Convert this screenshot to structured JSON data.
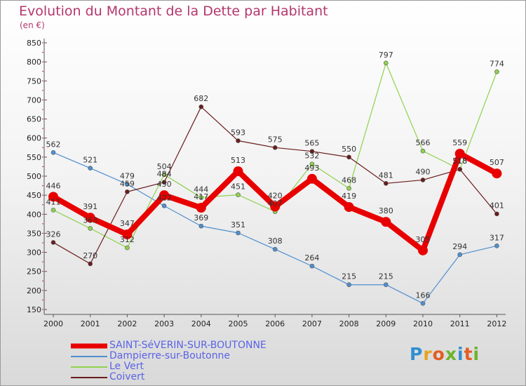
{
  "header": {
    "title": "Evolution du Montant de la Dette par Habitant",
    "unit": "(en €)"
  },
  "logo": {
    "letters": [
      {
        "ch": "P",
        "color": "#2f8fd1"
      },
      {
        "ch": "r",
        "color": "#e6a31f"
      },
      {
        "ch": "o",
        "color": "#e35d22"
      },
      {
        "ch": "x",
        "color": "#6bb42b"
      },
      {
        "ch": "i",
        "color": "#2f8fd1"
      },
      {
        "ch": "t",
        "color": "#e35d22"
      },
      {
        "ch": "i",
        "color": "#6bb42b"
      }
    ]
  },
  "chart_data": {
    "type": "line",
    "title": "Evolution du Montant de la Dette par Habitant",
    "ylabel": "(en €)",
    "xlabel": "",
    "ylim": [
      150,
      850
    ],
    "yticks": [
      150,
      200,
      250,
      300,
      350,
      400,
      450,
      500,
      550,
      600,
      650,
      700,
      750,
      800,
      850
    ],
    "grid": false,
    "legend_position": "bottom-left",
    "x": [
      "2000",
      "2001",
      "2002",
      "2003",
      "2004",
      "2005",
      "2006",
      "2007",
      "2008",
      "2009",
      "2010",
      "2011",
      "2012"
    ],
    "series": [
      {
        "name": "SAINT-SéVERIN-SUR-BOUTONNE",
        "color": "#e80000",
        "values": [
          446,
          391,
          347,
          450,
          417,
          513,
          420,
          493,
          419,
          380,
          305,
          559,
          507
        ]
      },
      {
        "name": "Dampierre-sur-Boutonne",
        "color": "#4f8fcf",
        "values": [
          562,
          521,
          479,
          422,
          369,
          351,
          308,
          264,
          215,
          215,
          166,
          294,
          317
        ]
      },
      {
        "name": "Le Vert",
        "color": "#8ed24d",
        "values": [
          411,
          363,
          312,
          504,
          444,
          451,
          407,
          532,
          468,
          797,
          566,
          518,
          774
        ]
      },
      {
        "name": "Coivert",
        "color": "#6a1c1c",
        "values": [
          326,
          270,
          459,
          484,
          682,
          593,
          575,
          565,
          550,
          481,
          490,
          518,
          401
        ]
      }
    ]
  }
}
